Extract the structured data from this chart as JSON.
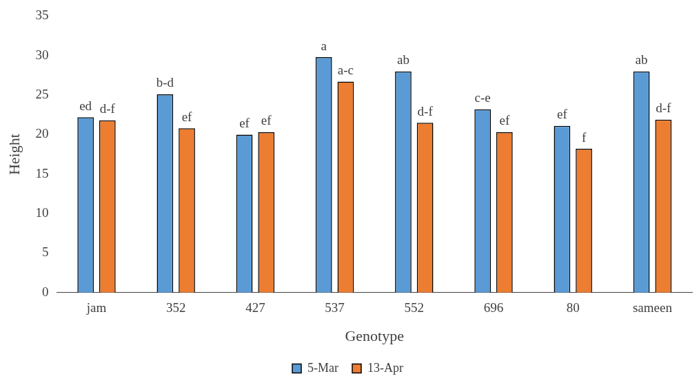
{
  "chart_data": {
    "type": "bar",
    "xlabel": "Genotype",
    "ylabel": "Height",
    "categories": [
      "jam",
      "352",
      "427",
      "537",
      "552",
      "696",
      "80",
      "sameen"
    ],
    "series": [
      {
        "name": "5-Mar",
        "color": "#5b9bd5",
        "values": [
          22.2,
          25.1,
          20.0,
          29.8,
          28.0,
          23.2,
          21.1,
          28.0
        ],
        "value_labels": [
          "ed",
          "b-d",
          "ef",
          "a",
          "ab",
          "c-e",
          "ef",
          "ab"
        ]
      },
      {
        "name": "13-Apr",
        "color": "#ed7d31",
        "values": [
          21.8,
          20.8,
          20.3,
          26.7,
          21.5,
          20.3,
          18.2,
          21.9
        ],
        "value_labels": [
          "d-f",
          "ef",
          "ef",
          "a-c",
          "d-f",
          "ef",
          "f",
          "d-f"
        ]
      }
    ],
    "ylim": [
      0,
      35
    ],
    "yticks": [
      0,
      5,
      10,
      15,
      20,
      25,
      30,
      35
    ],
    "grid": false,
    "legend": "bottom"
  }
}
